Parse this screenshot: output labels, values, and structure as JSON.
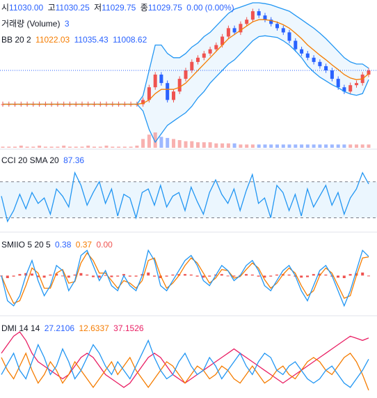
{
  "colors": {
    "up": "#ef5350",
    "down": "#2962ff",
    "bb_basis": "#f57c00",
    "bb_band": "#2196f3",
    "bb_fill": "#e3f2fd",
    "cci_line": "#2196f3",
    "cci_fill": "#e3f2fd",
    "smiio_main": "#2196f3",
    "smiio_signal": "#f57c00",
    "smiio_hist": "#ef5350",
    "dmi_plus": "#2196f3",
    "dmi_minus": "#f57c00",
    "dmi_adx": "#e91e63",
    "price_line": "#2962ff",
    "divider": "#e0e3eb",
    "dash": "#787b86"
  },
  "ohlc": {
    "open_label": "시",
    "open": "11030.00",
    "high_label": "고",
    "high": "11030.25",
    "low_label": "저",
    "low": "11029.75",
    "close_label": "종",
    "close": "11029.75",
    "change": "0.00",
    "change_pct": "(0.00%)"
  },
  "volume": {
    "label": "거래량 (Volume)",
    "value": "3"
  },
  "bb": {
    "label": "BB 20 2",
    "basis": "11022.03",
    "upper": "11035.43",
    "lower": "11008.62"
  },
  "cci": {
    "label": "CCI 20 SMA 20",
    "value": "87.36"
  },
  "smiio": {
    "label": "SMIIO 5 20 5",
    "v1": "0.38",
    "v2": "0.37",
    "v3": "0.00"
  },
  "dmi": {
    "label": "DMI 14 14",
    "plus": "27.2106",
    "minus": "12.6337",
    "adx": "37.1526"
  },
  "chart_data": [
    {
      "type": "line",
      "title": "",
      "series_note": "price with Bollinger Bands (basis, upper, lower) and volume",
      "x": [
        0,
        1,
        2,
        3,
        4,
        5,
        6,
        7,
        8,
        9,
        10,
        11,
        12,
        13,
        14,
        15,
        16,
        17,
        18,
        19,
        20,
        21,
        22,
        23,
        24,
        25,
        26,
        27,
        28,
        29,
        30,
        31,
        32,
        33,
        34,
        35,
        36,
        37,
        38,
        39,
        40,
        41,
        42,
        43,
        44,
        45,
        46,
        47,
        48,
        49,
        50,
        51,
        52,
        53,
        54,
        55,
        56,
        57,
        58,
        59,
        60
      ],
      "series": [
        {
          "name": "close",
          "values": [
            10950,
            10950,
            10950,
            10950,
            10950,
            10950,
            10950,
            10950,
            10950,
            10950,
            10950,
            10950,
            10950,
            10950,
            10950,
            10950,
            10950,
            10950,
            10950,
            10950,
            10950,
            10950,
            10950,
            10960,
            10990,
            11020,
            11000,
            10960,
            10980,
            11010,
            11030,
            11050,
            11060,
            11070,
            11080,
            11090,
            11110,
            11130,
            11120,
            11140,
            11150,
            11170,
            11160,
            11150,
            11140,
            11130,
            11120,
            11100,
            11080,
            11070,
            11060,
            11050,
            11040,
            11030,
            11010,
            10990,
            10980,
            10995,
            11000,
            11020,
            11030
          ]
        },
        {
          "name": "basis",
          "values": [
            10950,
            10950,
            10950,
            10950,
            10950,
            10950,
            10950,
            10950,
            10950,
            10950,
            10950,
            10950,
            10950,
            10950,
            10950,
            10950,
            10950,
            10950,
            10950,
            10950,
            10950,
            10950,
            10950,
            10952,
            10960,
            10975,
            10985,
            10985,
            10985,
            10990,
            11000,
            11015,
            11030,
            11045,
            11060,
            11075,
            11090,
            11105,
            11115,
            11125,
            11135,
            11145,
            11150,
            11150,
            11148,
            11144,
            11138,
            11130,
            11118,
            11105,
            11090,
            11078,
            11066,
            11055,
            11043,
            11032,
            11020,
            11012,
            11008,
            11010,
            11022
          ]
        },
        {
          "name": "upper",
          "values": [
            10950,
            10950,
            10950,
            10950,
            10950,
            10950,
            10950,
            10950,
            10950,
            10950,
            10950,
            10950,
            10950,
            10950,
            10950,
            10950,
            10950,
            10950,
            10950,
            10950,
            10950,
            10950,
            10950,
            10970,
            11030,
            11090,
            11090,
            11070,
            11060,
            11060,
            11070,
            11085,
            11095,
            11110,
            11120,
            11135,
            11150,
            11165,
            11175,
            11180,
            11185,
            11190,
            11190,
            11188,
            11185,
            11180,
            11175,
            11170,
            11160,
            11150,
            11140,
            11130,
            11118,
            11105,
            11090,
            11075,
            11060,
            11050,
            11045,
            11045,
            11035
          ]
        },
        {
          "name": "lower",
          "values": [
            10950,
            10950,
            10950,
            10950,
            10950,
            10950,
            10950,
            10950,
            10950,
            10950,
            10950,
            10950,
            10950,
            10950,
            10950,
            10950,
            10950,
            10950,
            10950,
            10950,
            10950,
            10950,
            10950,
            10934,
            10890,
            10860,
            10880,
            10900,
            10910,
            10920,
            10930,
            10945,
            10965,
            10980,
            11000,
            11015,
            11030,
            11045,
            11055,
            11070,
            11085,
            11100,
            11110,
            11112,
            11110,
            11108,
            11100,
            11090,
            11076,
            11060,
            11040,
            11026,
            11014,
            11005,
            10996,
            10989,
            10980,
            10974,
            10971,
            10975,
            11008
          ]
        },
        {
          "name": "volume",
          "values": [
            1,
            1,
            1,
            2,
            1,
            1,
            2,
            1,
            1,
            1,
            2,
            1,
            1,
            1,
            2,
            1,
            1,
            2,
            1,
            1,
            1,
            1,
            2,
            8,
            12,
            14,
            10,
            9,
            8,
            7,
            6,
            6,
            5,
            5,
            5,
            4,
            4,
            4,
            4,
            3,
            3,
            3,
            3,
            3,
            3,
            3,
            3,
            3,
            3,
            3,
            3,
            3,
            3,
            3,
            3,
            3,
            3,
            3,
            3,
            3,
            3
          ]
        }
      ]
    },
    {
      "type": "line",
      "title": "",
      "series": [
        {
          "name": "CCI",
          "values": [
            20,
            -120,
            -60,
            30,
            -50,
            40,
            -20,
            10,
            -80,
            60,
            20,
            -40,
            150,
            80,
            -30,
            40,
            100,
            -20,
            60,
            -90,
            30,
            10,
            -100,
            40,
            60,
            -30,
            80,
            -40,
            20,
            40,
            -60,
            70,
            -10,
            -80,
            40,
            110,
            30,
            -20,
            60,
            -60,
            50,
            140,
            -20,
            10,
            -100,
            80,
            40,
            -60,
            30,
            -90,
            60,
            -40,
            20,
            80,
            -30,
            40,
            -80,
            10,
            60,
            150,
            87.36
          ]
        }
      ],
      "ref_lines": [
        100,
        -100
      ]
    },
    {
      "type": "line",
      "title": "",
      "series": [
        {
          "name": "SMIIO",
          "values": [
            0.0,
            -0.5,
            -0.6,
            -0.4,
            0.0,
            0.3,
            -0.1,
            -0.4,
            -0.2,
            0.2,
            0.1,
            -0.3,
            -0.1,
            0.4,
            0.5,
            0.2,
            -0.1,
            0.1,
            -0.2,
            -0.3,
            0.0,
            -0.2,
            -0.3,
            0.0,
            0.5,
            0.3,
            -0.2,
            -0.3,
            -0.1,
            0.1,
            0.3,
            0.4,
            0.2,
            -0.1,
            -0.2,
            0.0,
            0.2,
            0.1,
            -0.1,
            0.0,
            0.2,
            0.3,
            0.1,
            -0.2,
            -0.3,
            -0.1,
            0.1,
            0.2,
            0.0,
            -0.3,
            -0.5,
            -0.2,
            0.1,
            0.2,
            0.0,
            -0.3,
            -0.6,
            -0.3,
            0.1,
            0.5,
            0.38
          ]
        },
        {
          "name": "signal",
          "values": [
            0.0,
            -0.3,
            -0.55,
            -0.5,
            -0.2,
            0.15,
            0.05,
            -0.25,
            -0.25,
            0.05,
            0.12,
            -0.15,
            -0.12,
            0.25,
            0.45,
            0.3,
            0.05,
            0.05,
            -0.1,
            -0.25,
            -0.1,
            -0.15,
            -0.25,
            -0.1,
            0.3,
            0.35,
            0.0,
            -0.25,
            -0.15,
            0.0,
            0.2,
            0.35,
            0.25,
            0.05,
            -0.15,
            -0.05,
            0.12,
            0.1,
            -0.05,
            -0.02,
            0.12,
            0.25,
            0.15,
            -0.08,
            -0.25,
            -0.15,
            0.02,
            0.15,
            0.05,
            -0.2,
            -0.4,
            -0.3,
            0.0,
            0.15,
            0.05,
            -0.2,
            -0.45,
            -0.4,
            0.0,
            0.35,
            0.37
          ]
        },
        {
          "name": "hist",
          "values": [
            0.0,
            -0.05,
            -0.02,
            0.03,
            0.05,
            0.04,
            -0.03,
            -0.04,
            0.02,
            0.04,
            -0.01,
            -0.04,
            0.02,
            0.05,
            0.02,
            -0.03,
            -0.04,
            0.01,
            -0.03,
            -0.02,
            0.03,
            -0.02,
            -0.02,
            0.03,
            0.06,
            -0.02,
            -0.05,
            -0.02,
            0.02,
            0.03,
            0.03,
            0.02,
            -0.02,
            -0.04,
            -0.02,
            0.02,
            0.03,
            0.0,
            -0.02,
            0.01,
            0.03,
            0.02,
            -0.02,
            -0.04,
            -0.02,
            0.02,
            0.03,
            0.02,
            -0.02,
            -0.04,
            -0.03,
            0.03,
            0.04,
            0.02,
            -0.02,
            -0.04,
            -0.05,
            0.03,
            0.05,
            0.06,
            0.0
          ]
        }
      ]
    },
    {
      "type": "line",
      "title": "",
      "series": [
        {
          "name": "+DI",
          "values": [
            20,
            25,
            30,
            22,
            18,
            26,
            34,
            28,
            20,
            24,
            32,
            26,
            18,
            22,
            28,
            34,
            30,
            24,
            20,
            26,
            22,
            18,
            24,
            30,
            36,
            28,
            22,
            18,
            20,
            26,
            30,
            24,
            20,
            22,
            28,
            24,
            18,
            22,
            26,
            30,
            24,
            20,
            26,
            30,
            28,
            22,
            20,
            24,
            26,
            22,
            18,
            16,
            18,
            22,
            24,
            20,
            16,
            14,
            18,
            22,
            27.21
          ]
        },
        {
          "name": "-DI",
          "values": [
            28,
            22,
            18,
            24,
            30,
            22,
            16,
            20,
            26,
            22,
            16,
            20,
            26,
            22,
            18,
            14,
            18,
            22,
            26,
            20,
            24,
            28,
            22,
            18,
            14,
            18,
            22,
            26,
            24,
            20,
            16,
            20,
            24,
            22,
            18,
            20,
            24,
            22,
            18,
            16,
            20,
            24,
            20,
            16,
            18,
            22,
            24,
            20,
            18,
            22,
            26,
            28,
            26,
            22,
            20,
            24,
            28,
            30,
            26,
            20,
            12.63
          ]
        },
        {
          "name": "ADX",
          "values": [
            30,
            34,
            38,
            40,
            36,
            30,
            26,
            24,
            22,
            20,
            18,
            20,
            24,
            28,
            30,
            28,
            24,
            20,
            18,
            16,
            14,
            16,
            20,
            24,
            28,
            30,
            28,
            24,
            20,
            18,
            16,
            18,
            20,
            22,
            24,
            26,
            28,
            30,
            32,
            30,
            28,
            26,
            24,
            22,
            20,
            18,
            16,
            18,
            20,
            22,
            24,
            26,
            28,
            30,
            32,
            34,
            36,
            38,
            37,
            36,
            37.15
          ]
        }
      ]
    }
  ]
}
